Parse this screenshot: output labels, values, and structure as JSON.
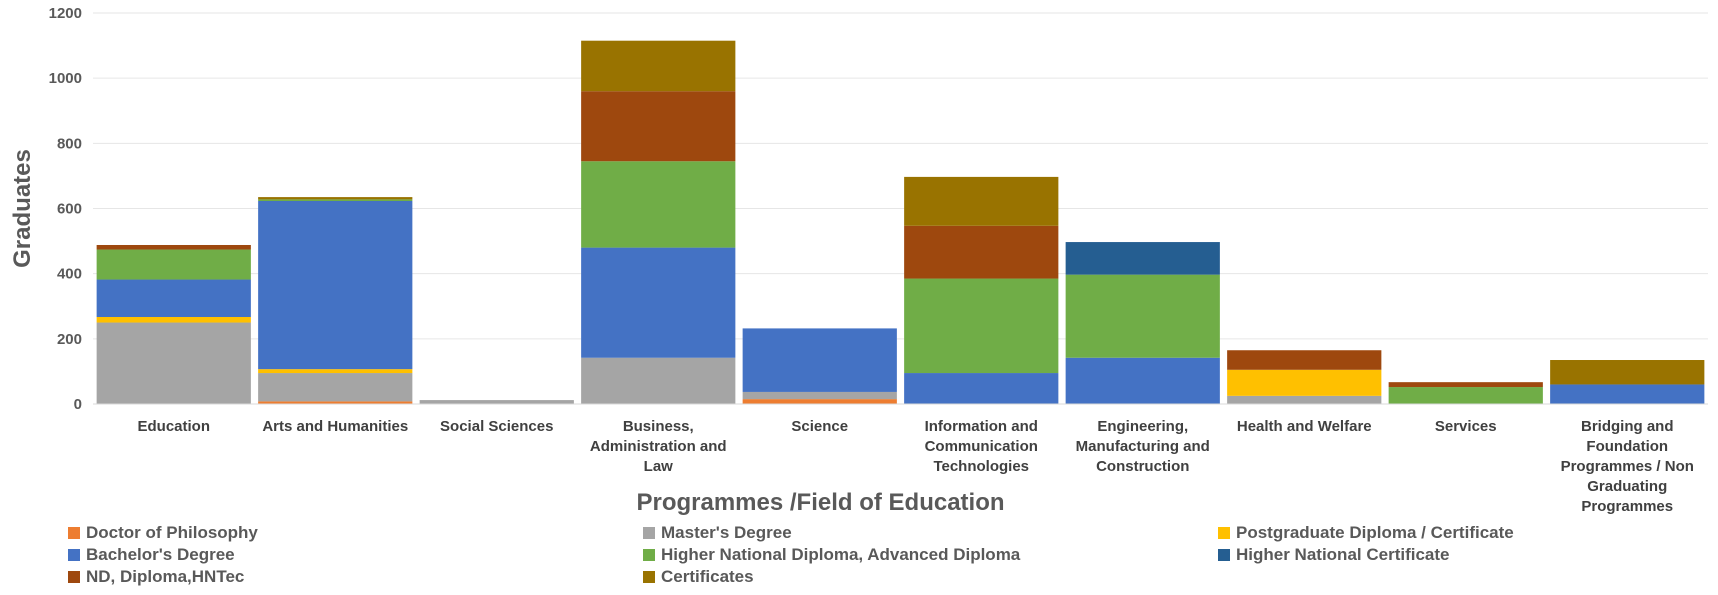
{
  "chart_data": {
    "type": "bar",
    "stacked": true,
    "title": "",
    "xlabel": "Programmes /Field of Education",
    "ylabel": "Graduates",
    "ylim": [
      0,
      1200
    ],
    "yticks": [
      0,
      200,
      400,
      600,
      800,
      1000,
      1200
    ],
    "grid": true,
    "legend_position": "bottom",
    "categories": [
      "Education",
      "Arts and Humanities",
      "Social Sciences",
      "Business, Administration and Law",
      "Science",
      "Information and Communication Technologies",
      "Engineering, Manufacturing and Construction",
      "Health and Welfare",
      "Services",
      "Bridging and Foundation Programmes / Non Graduating Programmes"
    ],
    "category_lines": [
      [
        "Education"
      ],
      [
        "Arts and Humanities"
      ],
      [
        "Social Sciences"
      ],
      [
        "Business,",
        "Administration and",
        "Law"
      ],
      [
        "Science"
      ],
      [
        "Information and",
        "Communication",
        "Technologies"
      ],
      [
        "Engineering,",
        "Manufacturing and",
        "Construction"
      ],
      [
        "Health and Welfare"
      ],
      [
        "Services"
      ],
      [
        "Bridging and",
        "Foundation",
        "Programmes / Non",
        "Graduating",
        "Programmes"
      ]
    ],
    "series": [
      {
        "name": "Doctor of Philosophy",
        "color": "#ED7D31",
        "values": [
          0,
          8,
          0,
          0,
          15,
          0,
          0,
          0,
          0,
          0
        ]
      },
      {
        "name": "Master's Degree",
        "color": "#A5A5A5",
        "values": [
          250,
          87,
          12,
          142,
          22,
          0,
          0,
          25,
          0,
          0
        ]
      },
      {
        "name": "Postgraduate Diploma / Certificate",
        "color": "#FFC000",
        "values": [
          17,
          12,
          0,
          0,
          0,
          0,
          0,
          80,
          0,
          0
        ]
      },
      {
        "name": "Bachelor's Degree",
        "color": "#4472C4",
        "values": [
          115,
          516,
          0,
          338,
          195,
          95,
          142,
          0,
          0,
          60
        ]
      },
      {
        "name": "Higher National Diploma, Advanced Diploma",
        "color": "#70AD47",
        "values": [
          92,
          5,
          0,
          265,
          0,
          290,
          255,
          0,
          52,
          0
        ]
      },
      {
        "name": "Higher National Certificate",
        "color": "#255E91",
        "values": [
          0,
          0,
          0,
          0,
          0,
          0,
          100,
          0,
          0,
          0
        ]
      },
      {
        "name": "ND, Diploma,HNTec",
        "color": "#9E480E",
        "values": [
          14,
          0,
          0,
          215,
          0,
          162,
          0,
          60,
          15,
          0
        ]
      },
      {
        "name": "Certificates",
        "color": "#997300",
        "values": [
          0,
          7,
          0,
          155,
          0,
          150,
          0,
          0,
          0,
          75
        ]
      }
    ]
  }
}
